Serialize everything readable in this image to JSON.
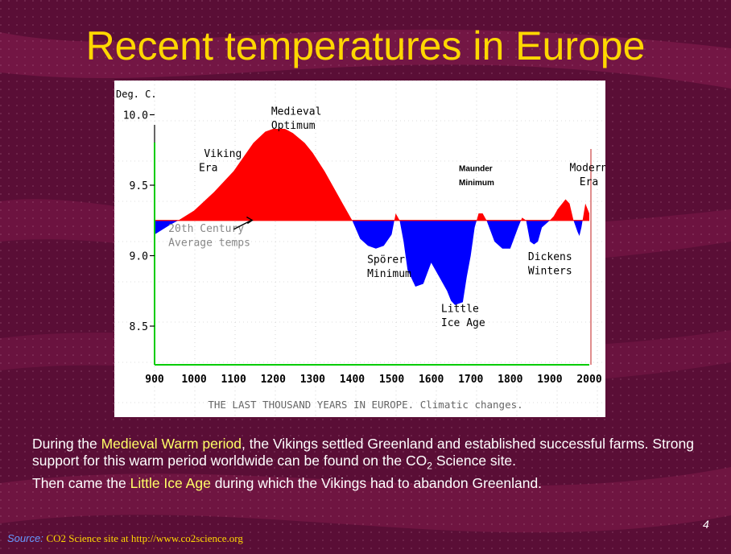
{
  "slide": {
    "title": "Recent temperatures in Europe",
    "page_number": "4",
    "body": {
      "p1": "During the ",
      "h1": "Medieval Warm period",
      "p2": ", the Vikings settled Greenland and established successful farms. Strong support for this warm period worldwide can be found on the CO",
      "sub": "2",
      "p3": " Science site.",
      "p4": "Then came the ",
      "h2": "Little Ice Age",
      "p5": " during which the Vikings had to abandon Greenland."
    },
    "source": {
      "label": "Source:",
      "site": "CO2 Science site",
      "at_text": " at http://www.co2science.org"
    },
    "colors": {
      "background": "#5a0e36",
      "title": "#ffd700",
      "highlight": "#ffff66",
      "warm": "#ff0000",
      "cold": "#0000ff",
      "axis": "#00cc00"
    }
  },
  "chart_data": {
    "type": "area",
    "ylabel": "Deg. C.",
    "caption": "THE LAST THOUSAND YEARS IN EUROPE. Climatic changes.",
    "xlim": [
      900,
      2000
    ],
    "ylim": [
      8.3,
      10.1
    ],
    "baseline": 9.25,
    "x_ticks": [
      "900",
      "1000",
      "1100",
      "1200",
      "1300",
      "1400",
      "1500",
      "1600",
      "1700",
      "1800",
      "1900",
      "2000"
    ],
    "y_ticks": [
      "10.0",
      "9.5",
      "9.0",
      "8.5"
    ],
    "series": [
      {
        "x": [
          900,
          940,
          960,
          1000,
          1050,
          1100,
          1150,
          1180,
          1200,
          1230,
          1250,
          1280,
          1300,
          1330,
          1360,
          1380,
          1400,
          1420,
          1440,
          1460,
          1480,
          1500,
          1510,
          1520,
          1530,
          1540,
          1560,
          1580,
          1600,
          1620,
          1640,
          1650,
          1660,
          1680,
          1690,
          1700,
          1710,
          1720,
          1730,
          1740,
          1760,
          1780,
          1800,
          1820,
          1830,
          1840,
          1850,
          1860,
          1870,
          1880,
          1900,
          1910,
          1920,
          1940,
          1950,
          1960,
          1970,
          1975,
          1980,
          1990,
          2000
        ],
        "values": [
          9.15,
          9.22,
          9.25,
          9.32,
          9.45,
          9.6,
          9.8,
          9.88,
          9.9,
          9.9,
          9.87,
          9.8,
          9.73,
          9.6,
          9.45,
          9.35,
          9.25,
          9.12,
          9.07,
          9.05,
          9.07,
          9.15,
          9.3,
          9.25,
          9.1,
          8.9,
          8.78,
          8.8,
          8.95,
          8.85,
          8.75,
          8.68,
          8.65,
          8.67,
          8.85,
          9.0,
          9.2,
          9.3,
          9.3,
          9.25,
          9.1,
          9.05,
          9.05,
          9.2,
          9.27,
          9.25,
          9.1,
          9.08,
          9.1,
          9.2,
          9.25,
          9.28,
          9.33,
          9.4,
          9.37,
          9.25,
          9.17,
          9.14,
          9.2,
          9.37,
          9.3
        ]
      }
    ],
    "annotations": [
      {
        "text": "Medieval",
        "x": 1195,
        "y": 10.0
      },
      {
        "text": "Optimum",
        "x": 1195,
        "y": 9.9
      },
      {
        "text": "Viking",
        "x": 1025,
        "y": 9.7
      },
      {
        "text": "Era",
        "x": 1012,
        "y": 9.6
      },
      {
        "text": "20th Century",
        "x": 935,
        "y": 9.17
      },
      {
        "text": "Average temps",
        "x": 935,
        "y": 9.07
      },
      {
        "text": "Spörer",
        "x": 1438,
        "y": 8.95
      },
      {
        "text": "Minimum",
        "x": 1438,
        "y": 8.85
      },
      {
        "text": "Maunder",
        "x": 1670,
        "y": 9.6
      },
      {
        "text": "Minimum",
        "x": 1670,
        "y": 9.5
      },
      {
        "text": "Dickens",
        "x": 1845,
        "y": 8.97
      },
      {
        "text": "Winters",
        "x": 1845,
        "y": 8.87
      },
      {
        "text": "Little",
        "x": 1625,
        "y": 8.6
      },
      {
        "text": "Ice Age",
        "x": 1625,
        "y": 8.5
      },
      {
        "text": "Modern",
        "x": 1950,
        "y": 9.6
      },
      {
        "text": "Era",
        "x": 1975,
        "y": 9.5
      }
    ]
  }
}
